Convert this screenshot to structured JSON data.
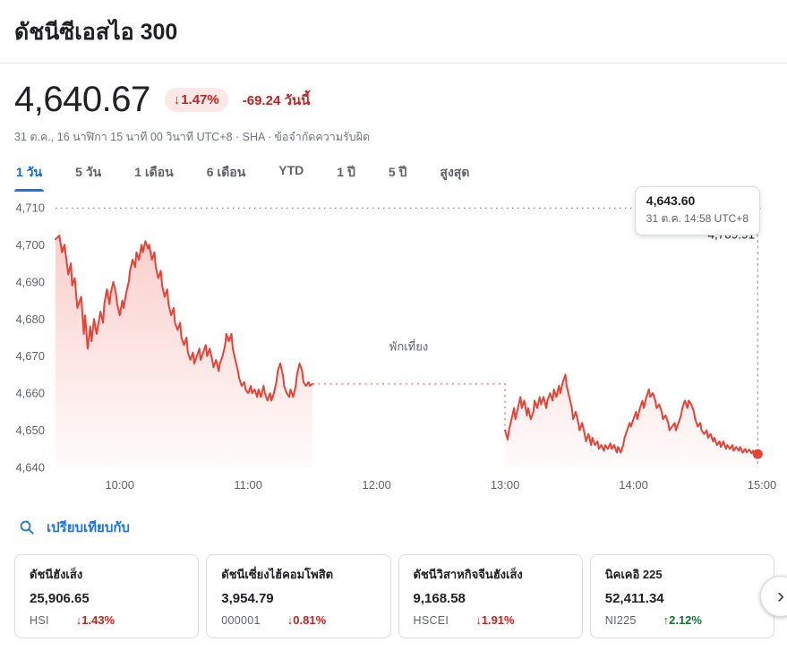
{
  "colors": {
    "line": "#e94235",
    "red": "#c5221f",
    "red_badge_bg": "#fce8e6",
    "green": "#137333",
    "blue": "#1a73e8",
    "axis": "#5f6368"
  },
  "icons": {
    "down_arrow": "↓",
    "up_arrow": "↑",
    "chevron_right": "›",
    "search": "magnifier"
  },
  "header": {
    "title": "ดัชนีซีเอสไอ 300"
  },
  "quote": {
    "price": "4,640.67",
    "change_percent": "1.47%",
    "change_direction": "down",
    "change_amount": "-69.24 วันนี้",
    "meta": "31 ต.ค., 16 นาฬิกา 15 นาที 00 วินาที UTC+8 · SHA ·",
    "disclaimer": "ข้อจำกัดความรับผิด"
  },
  "range_tabs": [
    {
      "label": "1 วัน",
      "active": true
    },
    {
      "label": "5 วัน",
      "active": false
    },
    {
      "label": "1 เดือน",
      "active": false
    },
    {
      "label": "6 เดือน",
      "active": false
    },
    {
      "label": "YTD",
      "active": false
    },
    {
      "label": "1 ปี",
      "active": false
    },
    {
      "label": "5 ปี",
      "active": false
    },
    {
      "label": "สูงสุด",
      "active": false
    }
  ],
  "chart_data": {
    "type": "line",
    "title": "ดัชนีซีเอสไอ 300 — 1 วัน",
    "ylim": [
      4640,
      4710
    ],
    "y_ticks": [
      "4,710",
      "4,700",
      "4,690",
      "4,680",
      "4,670",
      "4,660",
      "4,650",
      "4,640"
    ],
    "y_tick_values": [
      4710,
      4700,
      4690,
      4680,
      4670,
      4660,
      4650,
      4640
    ],
    "x_ticks": [
      "10:00",
      "11:00",
      "12:00",
      "13:00",
      "14:00",
      "15:00"
    ],
    "x_tick_hours": [
      10,
      11,
      12,
      13,
      14,
      15
    ],
    "x_range_hours": [
      9.5,
      15.0
    ],
    "previous_close": {
      "value": 4709.91,
      "label": "4,709.91"
    },
    "lunch_break": {
      "label": "พักเที่ยง",
      "start": 11.5,
      "end": 13.0,
      "level": 4662.5,
      "label_x": 12.25,
      "label_y": 4671.5
    },
    "crosshair_x": 14.967,
    "tooltip": {
      "price": "4,643.60",
      "time": "31 ต.ค. 14:58 UTC+8"
    },
    "series": [
      {
        "name": "morning-session",
        "points": [
          [
            9.5,
            4701.5
          ],
          [
            9.53,
            4702.5
          ],
          [
            9.55,
            4698
          ],
          [
            9.57,
            4700
          ],
          [
            9.6,
            4692
          ],
          [
            9.62,
            4695
          ],
          [
            9.63,
            4689
          ],
          [
            9.65,
            4691
          ],
          [
            9.67,
            4683
          ],
          [
            9.7,
            4686
          ],
          [
            9.72,
            4676
          ],
          [
            9.73,
            4681
          ],
          [
            9.75,
            4672
          ],
          [
            9.77,
            4678
          ],
          [
            9.78,
            4674
          ],
          [
            9.8,
            4680
          ],
          [
            9.82,
            4676
          ],
          [
            9.85,
            4682
          ],
          [
            9.87,
            4679
          ],
          [
            9.88,
            4684
          ],
          [
            9.9,
            4688
          ],
          [
            9.92,
            4684
          ],
          [
            9.93,
            4687
          ],
          [
            9.95,
            4690
          ],
          [
            9.97,
            4687
          ],
          [
            9.98,
            4684
          ],
          [
            10.0,
            4681
          ],
          [
            10.02,
            4685
          ],
          [
            10.03,
            4683
          ],
          [
            10.05,
            4687
          ],
          [
            10.07,
            4690
          ],
          [
            10.08,
            4693
          ],
          [
            10.1,
            4696
          ],
          [
            10.12,
            4694
          ],
          [
            10.13,
            4698
          ],
          [
            10.15,
            4696
          ],
          [
            10.17,
            4700
          ],
          [
            10.18,
            4698
          ],
          [
            10.2,
            4701
          ],
          [
            10.22,
            4699
          ],
          [
            10.23,
            4700
          ],
          [
            10.25,
            4696
          ],
          [
            10.27,
            4698
          ],
          [
            10.28,
            4694
          ],
          [
            10.3,
            4691
          ],
          [
            10.32,
            4693
          ],
          [
            10.33,
            4689
          ],
          [
            10.35,
            4686
          ],
          [
            10.37,
            4688
          ],
          [
            10.38,
            4684
          ],
          [
            10.4,
            4681
          ],
          [
            10.42,
            4683
          ],
          [
            10.43,
            4679
          ],
          [
            10.45,
            4677
          ],
          [
            10.47,
            4679
          ],
          [
            10.48,
            4675
          ],
          [
            10.5,
            4673
          ],
          [
            10.52,
            4675
          ],
          [
            10.53,
            4671
          ],
          [
            10.55,
            4669
          ],
          [
            10.57,
            4671
          ],
          [
            10.58,
            4668
          ],
          [
            10.6,
            4670
          ],
          [
            10.62,
            4672
          ],
          [
            10.63,
            4669
          ],
          [
            10.65,
            4671
          ],
          [
            10.67,
            4673
          ],
          [
            10.68,
            4670
          ],
          [
            10.7,
            4672
          ],
          [
            10.72,
            4669
          ],
          [
            10.73,
            4667
          ],
          [
            10.75,
            4669
          ],
          [
            10.77,
            4666
          ],
          [
            10.78,
            4668
          ],
          [
            10.8,
            4670
          ],
          [
            10.82,
            4673
          ],
          [
            10.83,
            4676
          ],
          [
            10.85,
            4674
          ],
          [
            10.87,
            4676
          ],
          [
            10.88,
            4672
          ],
          [
            10.9,
            4669
          ],
          [
            10.92,
            4666
          ],
          [
            10.93,
            4664
          ],
          [
            10.95,
            4662
          ],
          [
            10.97,
            4663
          ],
          [
            10.98,
            4661
          ],
          [
            11.0,
            4660
          ],
          [
            11.02,
            4662
          ],
          [
            11.03,
            4660
          ],
          [
            11.05,
            4661
          ],
          [
            11.07,
            4659
          ],
          [
            11.08,
            4661
          ],
          [
            11.1,
            4659
          ],
          [
            11.12,
            4662
          ],
          [
            11.13,
            4660
          ],
          [
            11.15,
            4658
          ],
          [
            11.17,
            4660
          ],
          [
            11.18,
            4658
          ],
          [
            11.2,
            4660
          ],
          [
            11.22,
            4663
          ],
          [
            11.23,
            4666
          ],
          [
            11.25,
            4668
          ],
          [
            11.27,
            4665
          ],
          [
            11.28,
            4662
          ],
          [
            11.3,
            4660
          ],
          [
            11.32,
            4659
          ],
          [
            11.33,
            4661
          ],
          [
            11.35,
            4659
          ],
          [
            11.37,
            4662
          ],
          [
            11.38,
            4665
          ],
          [
            11.4,
            4668
          ],
          [
            11.42,
            4666
          ],
          [
            11.43,
            4663
          ],
          [
            11.45,
            4662
          ],
          [
            11.47,
            4663
          ],
          [
            11.48,
            4662
          ],
          [
            11.5,
            4662.5
          ]
        ]
      },
      {
        "name": "afternoon-session",
        "points": [
          [
            13.0,
            4650
          ],
          [
            13.02,
            4647.5
          ],
          [
            13.03,
            4650
          ],
          [
            13.05,
            4653
          ],
          [
            13.07,
            4656
          ],
          [
            13.08,
            4653
          ],
          [
            13.1,
            4656
          ],
          [
            13.12,
            4659
          ],
          [
            13.13,
            4656
          ],
          [
            13.15,
            4658
          ],
          [
            13.17,
            4654
          ],
          [
            13.18,
            4656
          ],
          [
            13.2,
            4653
          ],
          [
            13.22,
            4655
          ],
          [
            13.23,
            4658
          ],
          [
            13.25,
            4656
          ],
          [
            13.27,
            4659
          ],
          [
            13.28,
            4657
          ],
          [
            13.3,
            4659
          ],
          [
            13.32,
            4656
          ],
          [
            13.33,
            4658
          ],
          [
            13.35,
            4660
          ],
          [
            13.37,
            4658
          ],
          [
            13.38,
            4661
          ],
          [
            13.4,
            4659
          ],
          [
            13.42,
            4662
          ],
          [
            13.43,
            4660
          ],
          [
            13.45,
            4663
          ],
          [
            13.47,
            4665
          ],
          [
            13.48,
            4662
          ],
          [
            13.5,
            4659
          ],
          [
            13.52,
            4656
          ],
          [
            13.53,
            4653
          ],
          [
            13.55,
            4655
          ],
          [
            13.57,
            4652
          ],
          [
            13.58,
            4650
          ],
          [
            13.6,
            4652
          ],
          [
            13.62,
            4649
          ],
          [
            13.63,
            4647
          ],
          [
            13.65,
            4649
          ],
          [
            13.67,
            4646
          ],
          [
            13.68,
            4648
          ],
          [
            13.7,
            4646
          ],
          [
            13.72,
            4647
          ],
          [
            13.73,
            4645
          ],
          [
            13.75,
            4646
          ],
          [
            13.77,
            4644.5
          ],
          [
            13.78,
            4646
          ],
          [
            13.8,
            4645
          ],
          [
            13.82,
            4646.5
          ],
          [
            13.83,
            4645
          ],
          [
            13.85,
            4646
          ],
          [
            13.87,
            4644
          ],
          [
            13.88,
            4645.5
          ],
          [
            13.9,
            4644
          ],
          [
            13.92,
            4646
          ],
          [
            13.93,
            4648
          ],
          [
            13.95,
            4650
          ],
          [
            13.97,
            4652
          ],
          [
            13.98,
            4651
          ],
          [
            14.0,
            4653
          ],
          [
            14.02,
            4655
          ],
          [
            14.03,
            4653
          ],
          [
            14.05,
            4656
          ],
          [
            14.07,
            4658
          ],
          [
            14.08,
            4656
          ],
          [
            14.1,
            4659
          ],
          [
            14.12,
            4661
          ],
          [
            14.13,
            4659
          ],
          [
            14.15,
            4660
          ],
          [
            14.17,
            4658
          ],
          [
            14.18,
            4656
          ],
          [
            14.2,
            4657
          ],
          [
            14.22,
            4655
          ],
          [
            14.23,
            4653
          ],
          [
            14.25,
            4654
          ],
          [
            14.27,
            4652
          ],
          [
            14.28,
            4650
          ],
          [
            14.3,
            4651
          ],
          [
            14.32,
            4652
          ],
          [
            14.33,
            4650
          ],
          [
            14.35,
            4652
          ],
          [
            14.37,
            4654
          ],
          [
            14.38,
            4656
          ],
          [
            14.4,
            4658
          ],
          [
            14.42,
            4656
          ],
          [
            14.43,
            4658
          ],
          [
            14.45,
            4657
          ],
          [
            14.47,
            4655
          ],
          [
            14.48,
            4653
          ],
          [
            14.5,
            4651
          ],
          [
            14.52,
            4652
          ],
          [
            14.53,
            4650
          ],
          [
            14.55,
            4649
          ],
          [
            14.57,
            4650
          ],
          [
            14.58,
            4648
          ],
          [
            14.6,
            4649
          ],
          [
            14.62,
            4647
          ],
          [
            14.63,
            4648
          ],
          [
            14.65,
            4646
          ],
          [
            14.67,
            4647
          ],
          [
            14.68,
            4645.5
          ],
          [
            14.7,
            4647
          ],
          [
            14.72,
            4645
          ],
          [
            14.73,
            4646
          ],
          [
            14.75,
            4645
          ],
          [
            14.77,
            4646
          ],
          [
            14.78,
            4644.5
          ],
          [
            14.8,
            4645.5
          ],
          [
            14.82,
            4644.5
          ],
          [
            14.83,
            4645.5
          ],
          [
            14.85,
            4644
          ],
          [
            14.87,
            4645
          ],
          [
            14.88,
            4644
          ],
          [
            14.9,
            4644.8
          ],
          [
            14.92,
            4643.8
          ],
          [
            14.93,
            4644.5
          ],
          [
            14.95,
            4643.8
          ],
          [
            14.967,
            4643.6
          ]
        ]
      }
    ]
  },
  "compare": {
    "label": "เปรียบเทียบกับ"
  },
  "related": [
    {
      "name": "ดัชนีฮังเส็ง",
      "value": "25,906.65",
      "ticker": "HSI",
      "change": "1.43%",
      "direction": "down"
    },
    {
      "name": "ดัชนีเซี่ยงไฮ้คอมโพสิต",
      "value": "3,954.79",
      "ticker": "000001",
      "change": "0.81%",
      "direction": "down"
    },
    {
      "name": "ดัชนีวิสาหกิจจีนฮังเส็ง",
      "value": "9,168.58",
      "ticker": "HSCEI",
      "change": "1.91%",
      "direction": "down"
    },
    {
      "name": "นิคเคอิ 225",
      "value": "52,411.34",
      "ticker": "NI225",
      "change": "2.12%",
      "direction": "up"
    }
  ]
}
